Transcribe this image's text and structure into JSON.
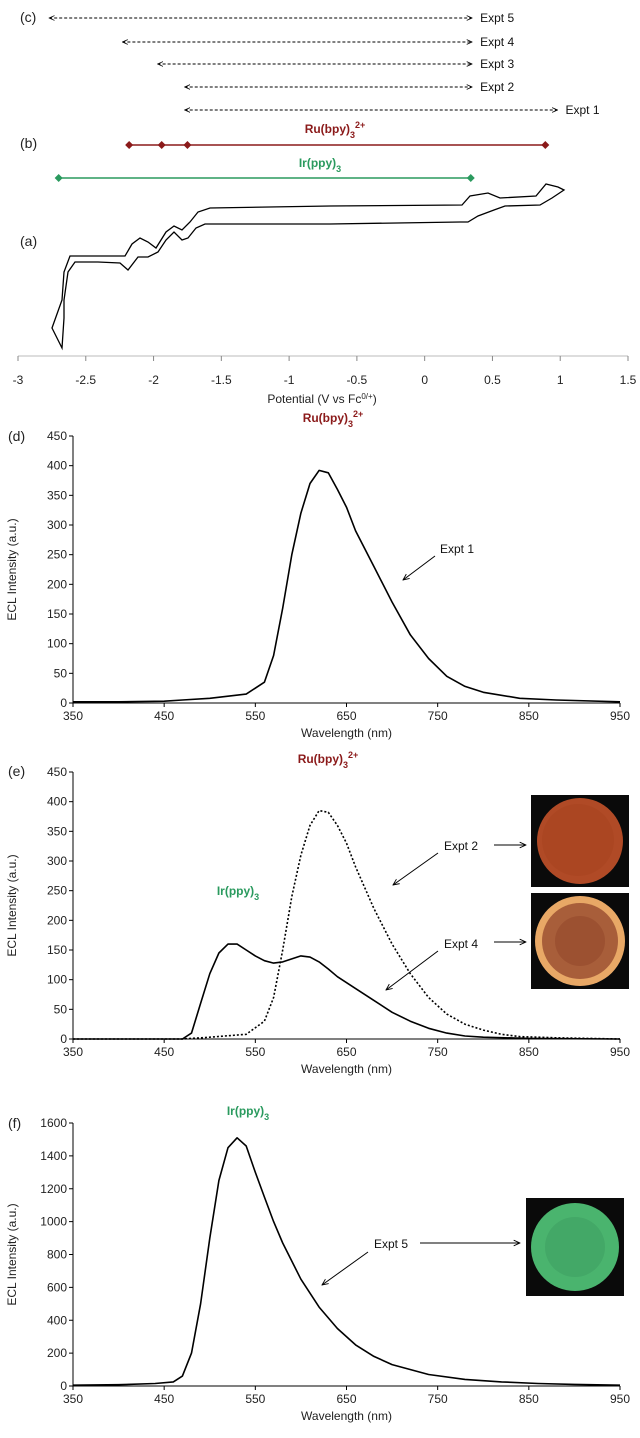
{
  "panel_labels": {
    "a": "(a)",
    "b": "(b)",
    "c": "(c)",
    "d": "(d)",
    "e": "(e)",
    "f": "(f)"
  },
  "colors": {
    "ru": "#8b1a1a",
    "ir": "#2a9a5e",
    "line": "#000000"
  },
  "species": {
    "ru_base": "Ru(bpy)",
    "ru_sub": "3",
    "ru_sup": "2+",
    "ir_base": "Ir(ppy)",
    "ir_sub": "3"
  },
  "cv": {
    "xlabel_base": "Potential (V vs Fc",
    "xlabel_sup": "0/+",
    "xlabel_close": ")",
    "xlim": [
      -3,
      1.5
    ],
    "xticks": [
      "-3",
      "-2.5",
      "-2",
      "-1.5",
      "-1",
      "-0.5",
      "0",
      "0.5",
      "1",
      "1.5"
    ],
    "expt_ranges": [
      {
        "label": "Expt 5",
        "from": -2.77,
        "to": 0.35
      },
      {
        "label": "Expt 4",
        "from": -2.23,
        "to": 0.35
      },
      {
        "label": "Expt 3",
        "from": -1.97,
        "to": 0.35
      },
      {
        "label": "Expt 2",
        "from": -1.77,
        "to": 0.35
      },
      {
        "label": "Expt 1",
        "from": -1.77,
        "to": 0.98
      }
    ],
    "ru_potentials": [
      -2.18,
      -1.94,
      -1.75,
      0.89
    ],
    "ir_potentials": [
      -2.7,
      0.34
    ]
  },
  "spectra_common": {
    "xlabel": "Wavelength (nm)",
    "ylabel": "ECL Intensity (a.u.)",
    "xticks": [
      "350",
      "450",
      "550",
      "650",
      "750",
      "850",
      "950"
    ],
    "xlim": [
      350,
      950
    ]
  },
  "chart_data": [
    {
      "type": "line",
      "panel": "(d)",
      "xlabel": "Wavelength (nm)",
      "ylabel": "ECL Intensity (a.u.)",
      "xlim": [
        350,
        950
      ],
      "ylim": [
        0,
        450
      ],
      "yticks": [
        "0",
        "50",
        "100",
        "150",
        "200",
        "250",
        "300",
        "350",
        "400",
        "450"
      ],
      "series": [
        {
          "name": "Expt 1",
          "style": "solid",
          "x": [
            350,
            400,
            450,
            470,
            500,
            540,
            560,
            570,
            580,
            590,
            600,
            610,
            620,
            630,
            640,
            650,
            660,
            680,
            700,
            720,
            740,
            760,
            780,
            800,
            840,
            880,
            950
          ],
          "y": [
            2,
            2,
            3,
            5,
            8,
            15,
            35,
            80,
            160,
            250,
            320,
            370,
            392,
            388,
            360,
            330,
            290,
            230,
            170,
            115,
            75,
            45,
            28,
            18,
            8,
            5,
            2
          ]
        }
      ],
      "annotations": [
        "Expt 1"
      ]
    },
    {
      "type": "line",
      "panel": "(e)",
      "xlabel": "Wavelength (nm)",
      "ylabel": "ECL Intensity (a.u.)",
      "xlim": [
        350,
        950
      ],
      "ylim": [
        0,
        450
      ],
      "yticks": [
        "0",
        "50",
        "100",
        "150",
        "200",
        "250",
        "300",
        "350",
        "400",
        "450"
      ],
      "series": [
        {
          "name": "Expt 2",
          "style": "dashed",
          "x": [
            350,
            470,
            500,
            540,
            560,
            570,
            580,
            590,
            600,
            610,
            620,
            630,
            640,
            650,
            660,
            680,
            700,
            720,
            740,
            760,
            780,
            800,
            820,
            840,
            880,
            950
          ],
          "y": [
            0,
            0,
            3,
            8,
            30,
            70,
            150,
            240,
            310,
            360,
            385,
            382,
            360,
            330,
            290,
            220,
            160,
            110,
            70,
            42,
            25,
            15,
            8,
            4,
            2,
            0
          ]
        },
        {
          "name": "Expt 4",
          "style": "solid",
          "x": [
            350,
            470,
            480,
            490,
            500,
            510,
            520,
            530,
            540,
            550,
            560,
            570,
            580,
            590,
            600,
            610,
            620,
            630,
            640,
            660,
            680,
            700,
            720,
            740,
            760,
            780,
            800,
            850,
            950
          ],
          "y": [
            0,
            0,
            10,
            60,
            110,
            145,
            160,
            160,
            150,
            140,
            132,
            128,
            130,
            135,
            140,
            138,
            130,
            118,
            105,
            85,
            65,
            45,
            30,
            18,
            10,
            5,
            3,
            1,
            0
          ]
        }
      ],
      "annotations": [
        "Expt 2",
        "Expt 4"
      ]
    },
    {
      "type": "line",
      "panel": "(f)",
      "xlabel": "Wavelength (nm)",
      "ylabel": "ECL Intensity (a.u.)",
      "xlim": [
        350,
        950
      ],
      "ylim": [
        0,
        1600
      ],
      "yticks": [
        "0",
        "200",
        "400",
        "600",
        "800",
        "1000",
        "1200",
        "1400",
        "1600"
      ],
      "series": [
        {
          "name": "Expt 5",
          "style": "solid",
          "x": [
            350,
            400,
            440,
            460,
            470,
            480,
            490,
            500,
            510,
            520,
            530,
            540,
            550,
            560,
            570,
            580,
            600,
            620,
            640,
            660,
            680,
            700,
            740,
            780,
            820,
            860,
            900,
            950
          ],
          "y": [
            5,
            8,
            15,
            25,
            60,
            200,
            500,
            900,
            1250,
            1450,
            1510,
            1460,
            1300,
            1150,
            1000,
            870,
            650,
            480,
            350,
            250,
            180,
            130,
            70,
            40,
            25,
            15,
            10,
            5
          ]
        }
      ],
      "annotations": [
        "Expt 5"
      ]
    }
  ]
}
